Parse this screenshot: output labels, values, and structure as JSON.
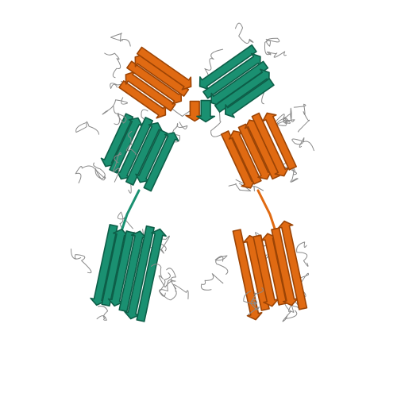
{
  "image": {
    "subject": "protein-ribbon-structure",
    "background": "#ffffff",
    "chains": [
      {
        "name": "chain-a",
        "color": "#1a9071",
        "dark": "#0d5e48",
        "domains": 4
      },
      {
        "name": "chain-b",
        "color": "#e06a12",
        "dark": "#9c4405",
        "domains": 4
      }
    ],
    "coil_color": "#8a8a8a"
  }
}
